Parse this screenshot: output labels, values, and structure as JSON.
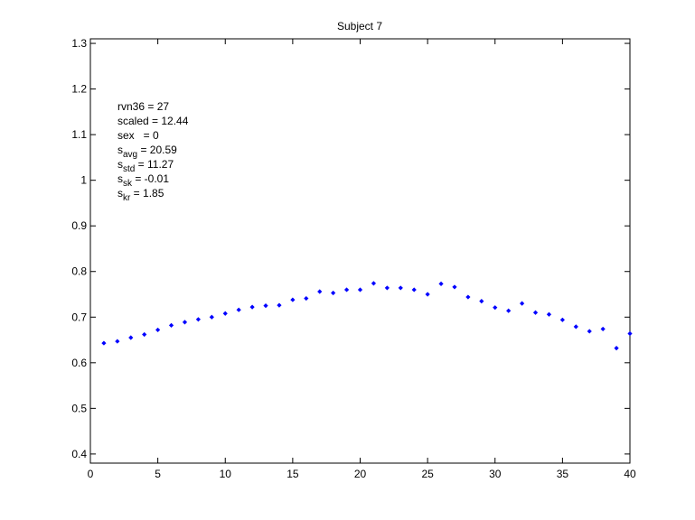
{
  "chart_data": {
    "type": "scatter",
    "title": "Subject 7",
    "xlabel": "",
    "ylabel": "",
    "xlim": [
      0,
      40
    ],
    "ylim": [
      0.38,
      1.31
    ],
    "xticks": [
      0,
      5,
      10,
      15,
      20,
      25,
      30,
      35,
      40
    ],
    "yticks": [
      0.4,
      0.5,
      0.6,
      0.7,
      0.8,
      0.9,
      1,
      1.1,
      1.2,
      1.3
    ],
    "xtick_labels": [
      "0",
      "5",
      "10",
      "15",
      "20",
      "25",
      "30",
      "35",
      "40"
    ],
    "ytick_labels": [
      "0.4",
      "0.5",
      "0.6",
      "0.7",
      "0.8",
      "0.9",
      "1",
      "1.1",
      "1.2",
      "1.3"
    ],
    "grid": false,
    "legend": "none",
    "marker_color": "#0000ff",
    "x": [
      1,
      2,
      3,
      4,
      5,
      6,
      7,
      8,
      9,
      10,
      11,
      12,
      13,
      14,
      15,
      16,
      17,
      18,
      19,
      20,
      21,
      22,
      23,
      24,
      25,
      26,
      27,
      28,
      29,
      30,
      31,
      32,
      33,
      34,
      35,
      36,
      37,
      38,
      39,
      40
    ],
    "y": [
      0.643,
      0.647,
      0.655,
      0.662,
      0.672,
      0.682,
      0.689,
      0.695,
      0.7,
      0.708,
      0.716,
      0.722,
      0.725,
      0.726,
      0.738,
      0.741,
      0.756,
      0.753,
      0.76,
      0.76,
      0.774,
      0.764,
      0.764,
      0.76,
      0.75,
      0.773,
      0.766,
      0.744,
      0.735,
      0.721,
      0.714,
      0.73,
      0.71,
      0.706,
      0.694,
      0.679,
      0.669,
      0.674,
      0.632,
      0.664
    ],
    "annotations": [
      {
        "base": "rvn36 = 27",
        "sub": "",
        "rest": ""
      },
      {
        "base": "scaled = 12.44",
        "sub": "",
        "rest": ""
      },
      {
        "base": "sex   = 0",
        "sub": "",
        "rest": ""
      },
      {
        "base": "s",
        "sub": "avg",
        "rest": " = 20.59"
      },
      {
        "base": "s",
        "sub": "std",
        "rest": " = 11.27"
      },
      {
        "base": "s",
        "sub": "sk",
        "rest": " = -0.01"
      },
      {
        "base": "s",
        "sub": "kr",
        "rest": " = 1.85"
      }
    ]
  }
}
